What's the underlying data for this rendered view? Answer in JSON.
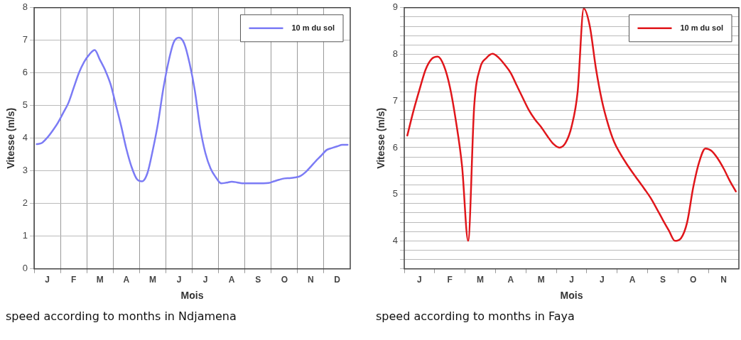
{
  "chart_data": [
    {
      "type": "line",
      "xlabel": "Mois",
      "ylabel": "Vitesse (m/s)",
      "annotations": [
        "speed according to months in Ndjamena"
      ],
      "categories": [
        null,
        null,
        "J",
        null,
        null,
        null,
        null,
        "F",
        null,
        null,
        null,
        null,
        "M",
        null,
        null,
        null,
        null,
        "A",
        null,
        null,
        null,
        null,
        "M",
        null,
        null,
        null,
        null,
        "J",
        null,
        null,
        null,
        null,
        "J",
        null,
        null,
        null,
        null,
        "A",
        null,
        null,
        null,
        null,
        "S",
        null,
        null,
        null,
        null,
        "O",
        null,
        null,
        null,
        null,
        "N",
        null,
        null,
        null,
        null,
        "D",
        null,
        null
      ],
      "ylim": [
        0,
        8
      ],
      "yticks": [
        0,
        1,
        2,
        3,
        4,
        5,
        6,
        7,
        8
      ],
      "grid": true,
      "legend": "top right",
      "marker": "none",
      "line_style": "solid",
      "series": [
        {
          "name": "10 m du sol",
          "color": "#7b7bf5",
          "values": [
            3.82,
            3.86,
            4.02,
            4.23,
            4.47,
            4.77,
            5.08,
            5.54,
            6.0,
            6.34,
            6.57,
            6.7,
            6.4,
            6.08,
            5.66,
            5.03,
            4.39,
            3.68,
            3.12,
            2.75,
            2.68,
            2.93,
            3.62,
            4.45,
            5.5,
            6.34,
            6.94,
            7.08,
            6.9,
            6.3,
            5.46,
            4.33,
            3.55,
            3.07,
            2.8,
            2.62,
            2.64,
            2.67,
            2.65,
            2.62,
            2.62,
            2.62,
            2.62,
            2.62,
            2.63,
            2.68,
            2.73,
            2.77,
            2.78,
            2.8,
            2.84,
            2.96,
            3.13,
            3.31,
            3.47,
            3.64,
            3.7,
            3.75,
            3.8,
            3.8
          ]
        }
      ]
    },
    {
      "type": "line",
      "xlabel": "Mois",
      "ylabel": "Vitesse (m/s)",
      "annotations": [
        "speed according to months in Faya"
      ],
      "categories": [
        null,
        null,
        "J",
        null,
        null,
        null,
        null,
        "F",
        null,
        null,
        null,
        null,
        "M",
        null,
        null,
        null,
        null,
        "A",
        null,
        null,
        null,
        null,
        "M",
        null,
        null,
        null,
        null,
        "J",
        null,
        null,
        null,
        null,
        "J",
        null,
        null,
        null,
        null,
        "A",
        null,
        null,
        null,
        null,
        "S",
        null,
        null,
        null,
        null,
        "O",
        null,
        null,
        null,
        null,
        "N",
        null,
        null
      ],
      "ylim": [
        3.4,
        9
      ],
      "yticks": [
        {
          "value": 3.4,
          "label": null
        },
        {
          "value": 3.6,
          "label": null
        },
        {
          "value": 3.8,
          "label": null
        },
        4,
        {
          "value": 4.2,
          "label": null
        },
        {
          "value": 4.4,
          "label": null
        },
        {
          "value": 4.6,
          "label": null
        },
        {
          "value": 4.8,
          "label": null
        },
        5,
        {
          "value": 5.2,
          "label": null
        },
        {
          "value": 5.4,
          "label": null
        },
        {
          "value": 5.6,
          "label": null
        },
        {
          "value": 5.8,
          "label": null
        },
        6,
        {
          "value": 6.2,
          "label": null
        },
        {
          "value": 6.4,
          "label": null
        },
        {
          "value": 6.6,
          "label": null
        },
        {
          "value": 6.8,
          "label": null
        },
        7,
        {
          "value": 7.2,
          "label": null
        },
        {
          "value": 7.4,
          "label": null
        },
        {
          "value": 7.6,
          "label": null
        },
        {
          "value": 7.8,
          "label": null
        },
        8,
        {
          "value": 8.2,
          "label": null
        },
        {
          "value": 8.4,
          "label": null
        },
        {
          "value": 8.6,
          "label": null
        },
        {
          "value": 8.8,
          "label": null
        },
        9
      ],
      "grid": "y",
      "legend": "top right",
      "marker": "none",
      "line_style": "solid",
      "series": [
        {
          "name": "10 m du sol",
          "color": "#e0161b",
          "values": [
            6.26,
            6.78,
            7.24,
            7.67,
            7.9,
            7.95,
            7.76,
            7.3,
            6.56,
            5.6,
            4.0,
            6.9,
            7.72,
            7.92,
            8.01,
            7.93,
            7.78,
            7.6,
            7.33,
            7.06,
            6.8,
            6.6,
            6.44,
            6.25,
            6.08,
            6.0,
            6.1,
            6.45,
            7.2,
            8.98,
            8.6,
            7.7,
            7.0,
            6.5,
            6.12,
            5.87,
            5.66,
            5.47,
            5.29,
            5.11,
            4.92,
            4.69,
            4.45,
            4.22,
            4.0,
            4.06,
            4.4,
            5.15,
            5.7,
            5.98,
            5.93,
            5.77,
            5.55,
            5.29,
            5.06
          ]
        }
      ]
    }
  ]
}
